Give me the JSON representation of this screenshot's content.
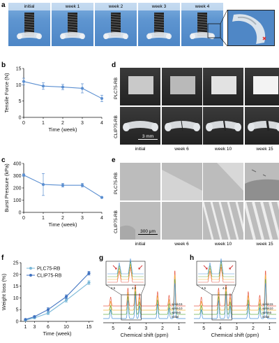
{
  "panels": {
    "a": {
      "letter": "a",
      "tiles": [
        "initial",
        "week 1",
        "week 2",
        "week 3",
        "week 4"
      ]
    },
    "b": {
      "letter": "b"
    },
    "c": {
      "letter": "c"
    },
    "d": {
      "letter": "d",
      "rows": [
        "PLC75-RB",
        "CLIP75-RB"
      ],
      "cols": [
        "initial",
        "week 6",
        "week 10",
        "week 15"
      ],
      "scalebar": "3 mm"
    },
    "e": {
      "letter": "e",
      "rows": [
        "PLC75-RB",
        "CLIP75-RB"
      ],
      "cols": [
        "initial",
        "week 6",
        "week 10",
        "week 15"
      ],
      "scalebar": "300 μm"
    },
    "f": {
      "letter": "f"
    },
    "g": {
      "letter": "g",
      "legend": [
        "week15",
        "week10",
        "week6",
        "initial"
      ]
    },
    "h": {
      "letter": "h",
      "legend": [
        "week15",
        "week10",
        "week6",
        "initial"
      ]
    }
  },
  "chart_data": [
    {
      "id": "b",
      "type": "line",
      "xlabel": "Time (week)",
      "ylabel": "Tensile Force (N)",
      "x": [
        0,
        1,
        2,
        3,
        4
      ],
      "xticks": [
        0,
        1,
        2,
        3,
        4
      ],
      "yticks": [
        0,
        5,
        10,
        15
      ],
      "ylim": [
        0,
        15
      ],
      "series": [
        {
          "values": [
            11.0,
            9.6,
            9.3,
            8.9,
            5.8
          ],
          "errors": [
            1.0,
            1.0,
            0.8,
            1.4,
            1.0
          ],
          "color": "#5b8fd1"
        }
      ]
    },
    {
      "id": "c",
      "type": "line",
      "xlabel": "Time (week)",
      "ylabel": "Burst Pressure (kPa)",
      "x": [
        0,
        1,
        2,
        3,
        4
      ],
      "xticks": [
        0,
        1,
        2,
        3,
        4
      ],
      "yticks": [
        0,
        100,
        200,
        300,
        400
      ],
      "ylim": [
        0,
        400
      ],
      "series": [
        {
          "values": [
            305,
            228,
            222,
            222,
            122
          ],
          "errors": [
            10,
            90,
            15,
            15,
            5
          ],
          "color": "#5b8fd1"
        }
      ]
    },
    {
      "id": "f",
      "type": "line",
      "xlabel": "Time (week)",
      "ylabel": "Weight loss (%)",
      "x": [
        1,
        3,
        6,
        10,
        15
      ],
      "xticks": [
        1,
        3,
        6,
        10,
        15
      ],
      "xlim": [
        0,
        16
      ],
      "yticks": [
        0,
        5,
        10,
        15,
        20,
        25
      ],
      "ylim": [
        0,
        25
      ],
      "legend_position": "top-left",
      "series": [
        {
          "name": "PLC75-RB",
          "values": [
            0.5,
            1.5,
            3.5,
            9.0,
            16.5
          ],
          "errors": [
            0.3,
            0.4,
            0.6,
            0.8,
            0.8
          ],
          "color": "#7ab8d8"
        },
        {
          "name": "CLIP75-RB",
          "values": [
            0.8,
            2.0,
            5.0,
            10.5,
            20.5
          ],
          "errors": [
            0.3,
            0.4,
            0.8,
            0.8,
            0.8
          ],
          "color": "#3f72c0"
        }
      ]
    },
    {
      "id": "g",
      "type": "line",
      "xlabel": "Chemical shift (ppm)",
      "xticks": [
        5,
        4,
        3,
        2,
        1
      ],
      "xlim": [
        5.6,
        0.6
      ],
      "inset_xticks": [
        "4.5",
        "4.0"
      ]
    },
    {
      "id": "h",
      "type": "line",
      "xlabel": "Chemical shift (ppm)",
      "xticks": [
        5,
        4,
        3,
        2,
        1
      ],
      "xlim": [
        5.6,
        0.6
      ],
      "inset_xticks": [
        "4.5",
        "4.0"
      ]
    }
  ]
}
